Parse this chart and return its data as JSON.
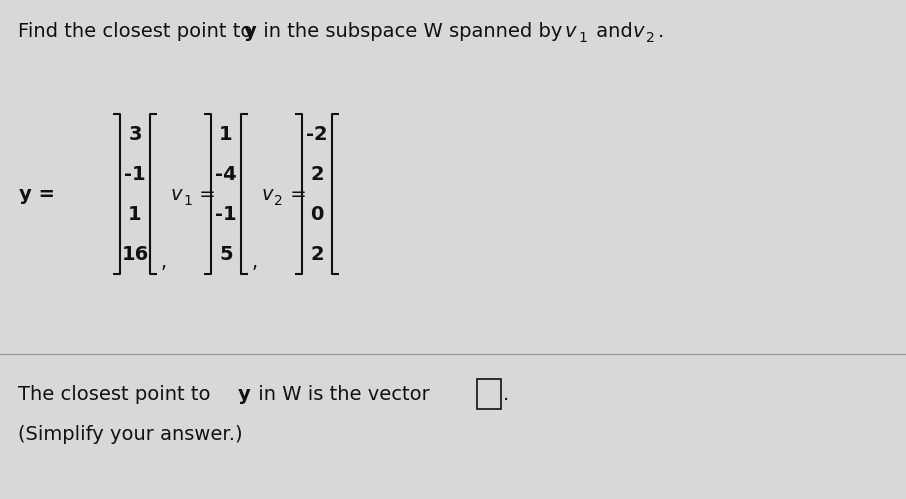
{
  "y_vec": [
    "3",
    "-1",
    "1",
    "16"
  ],
  "v1_vec": [
    "1",
    "-4",
    "-1",
    "5"
  ],
  "v2_vec": [
    "-2",
    "2",
    "0",
    "2"
  ],
  "bg_color": "#d8d8d8",
  "text_color": "#111111",
  "separator_color": "#999999",
  "title_fontsize": 14,
  "body_fontsize": 14,
  "matrix_fontsize": 14,
  "small_fontsize": 10
}
